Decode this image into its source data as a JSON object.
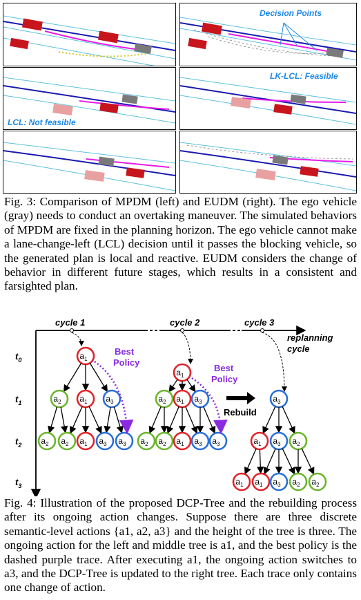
{
  "fig3": {
    "panels": {
      "right_top_annotation": "Decision Points",
      "left_mid_annotation": "LCL: Not feasible",
      "right_mid_annotation": "LK-LCL: Feasible"
    },
    "caption": {
      "label": "Fig. 3:",
      "text": " Comparison of MPDM (left) and EUDM (right). The ego vehicle (gray) needs to conduct an overtaking maneuver. The simulated behaviors of MPDM are fixed in the planning horizon. The ego vehicle cannot make a lane-change-left (LCL) decision until it passes the blocking vehicle, so the generated plan is local and reactive. EUDM considers the change of behavior in different future stages, which results in a consistent and farsighted plan."
    }
  },
  "fig4": {
    "cycles": [
      "cycle 1",
      "cycle 2",
      "cycle 3"
    ],
    "replanning": [
      "replanning",
      "cycle"
    ],
    "time_labels": [
      "t",
      "t",
      "t",
      "t"
    ],
    "time_subs": [
      "0",
      "1",
      "2",
      "3"
    ],
    "axis_label": "t",
    "best_policy": [
      "Best",
      "Policy"
    ],
    "rebuild": "Rebuild",
    "node_letter": "a",
    "subs": [
      "1",
      "2",
      "3"
    ],
    "colors": {
      "a1": "#e0242a",
      "a2": "#6cb52c",
      "a3": "#2a6fd8",
      "best": "#8a2be2"
    },
    "caption": {
      "label": "Fig. 4:",
      "text": " Illustration of the proposed DCP-Tree and the rebuilding process after its ongoing action changes. Suppose there are three discrete semantic-level actions {a1, a2, a3} and the height of the tree is three. The ongoing action for the left and middle tree is a1, and the best policy is the dashed purple trace. After executing a1, the ongoing action switches to a3, and the DCP-Tree is updated to the right tree. Each trace only contains one change of action."
    }
  }
}
